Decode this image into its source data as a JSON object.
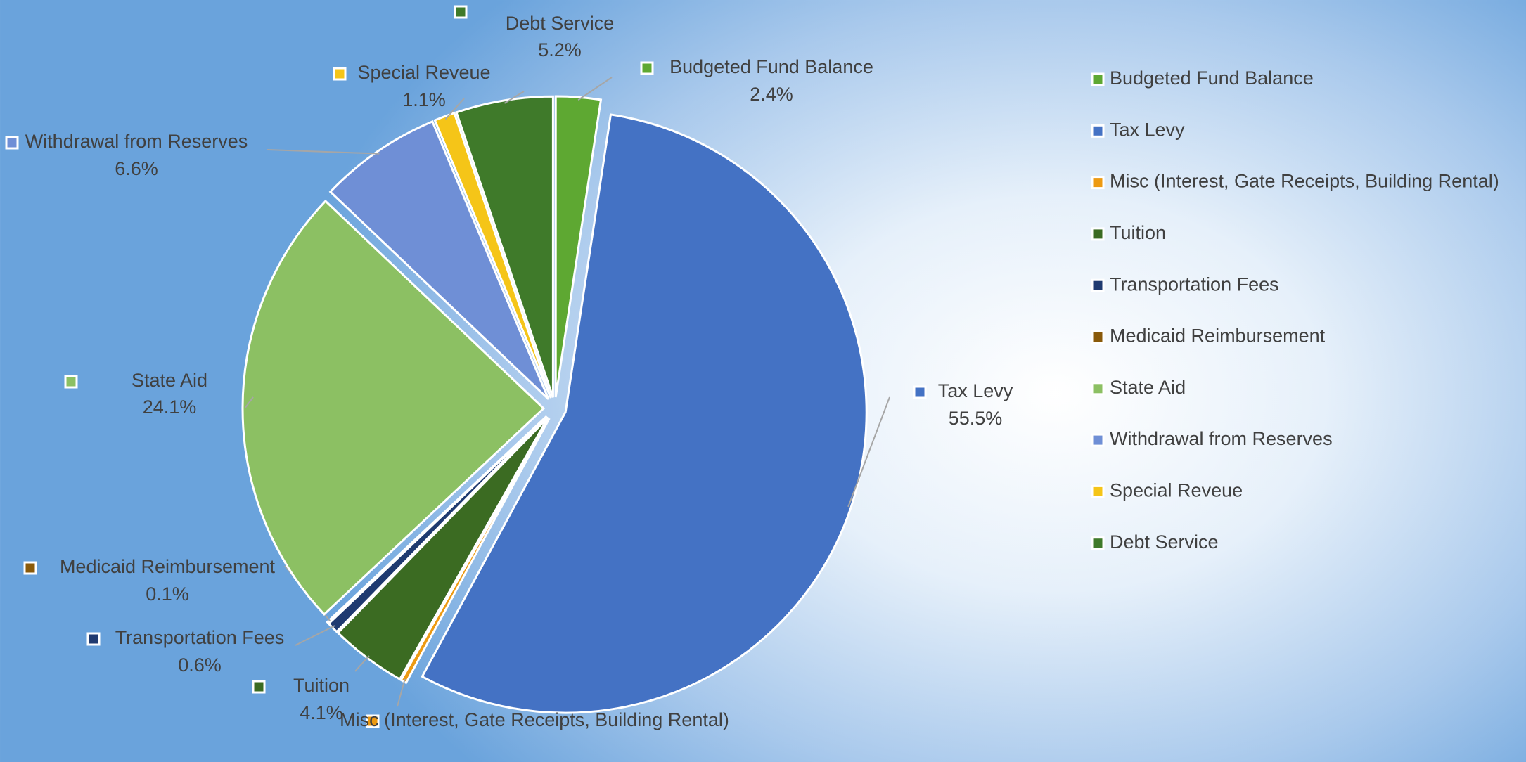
{
  "chart_data": {
    "type": "pie",
    "categories": [
      "Budgeted Fund Balance",
      "Tax Levy",
      "Misc (Interest, Gate Receipts, Building Rental)",
      "Tuition",
      "Transportation Fees",
      "Medicaid Reimbursement",
      "State Aid",
      "Withdrawal from Reserves",
      "Special Reveue",
      "Debt Service"
    ],
    "values": [
      2.4,
      55.5,
      0.3,
      4.1,
      0.6,
      0.1,
      24.1,
      6.6,
      1.1,
      5.2
    ],
    "value_labels": [
      "2.4%",
      "55.5%",
      null,
      "4.1%",
      "0.6%",
      "0.1%",
      "24.1%",
      "6.6%",
      "1.1%",
      "5.2%"
    ],
    "colors": [
      "#5ea832",
      "#4472c4",
      "#ed9a12",
      "#3b6b22",
      "#1f3a70",
      "#8a5a0a",
      "#8cc063",
      "#6f8fd6",
      "#f5c518",
      "#3f7a2a"
    ],
    "legend": "right"
  }
}
